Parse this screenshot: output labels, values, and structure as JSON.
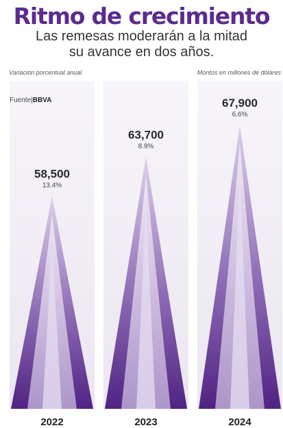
{
  "header": {
    "title": "Ritmo de crecimiento",
    "subtitle_line1": "Las remesas moderarán a la mitad",
    "subtitle_line2": "su avance en dos años."
  },
  "notes": {
    "left": "Variación porcentual anual",
    "right": "Montos en millones de dólares"
  },
  "source": {
    "label": "Fuente|",
    "name": "BBVA"
  },
  "colors": {
    "title": "#5b2c8e",
    "panel": "#f1eef4",
    "cone_dark": "#5c2f8c",
    "cone_light": "#c9b8dc"
  },
  "chart_data": {
    "type": "bar",
    "style": "cone",
    "categories": [
      "2022",
      "2023",
      "2024"
    ],
    "values": [
      58500,
      63700,
      67900
    ],
    "value_labels": [
      "58,500",
      "63,700",
      "67,900"
    ],
    "pct_labels": [
      "13.4%",
      "8.9%",
      "6.6%"
    ],
    "pct_change": [
      13.4,
      8.9,
      6.6
    ],
    "grid": false,
    "legend": "none"
  }
}
